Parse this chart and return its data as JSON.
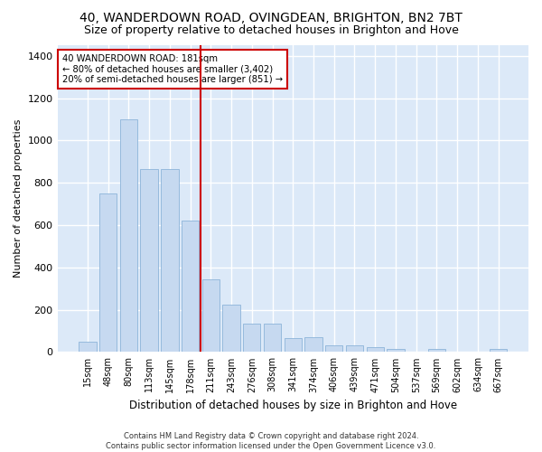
{
  "title": "40, WANDERDOWN ROAD, OVINGDEAN, BRIGHTON, BN2 7BT",
  "subtitle": "Size of property relative to detached houses in Brighton and Hove",
  "xlabel": "Distribution of detached houses by size in Brighton and Hove",
  "ylabel": "Number of detached properties",
  "footer_line1": "Contains HM Land Registry data © Crown copyright and database right 2024.",
  "footer_line2": "Contains public sector information licensed under the Open Government Licence v3.0.",
  "bar_labels": [
    "15sqm",
    "48sqm",
    "80sqm",
    "113sqm",
    "145sqm",
    "178sqm",
    "211sqm",
    "243sqm",
    "276sqm",
    "308sqm",
    "341sqm",
    "374sqm",
    "406sqm",
    "439sqm",
    "471sqm",
    "504sqm",
    "537sqm",
    "569sqm",
    "602sqm",
    "634sqm",
    "667sqm"
  ],
  "bar_values": [
    50,
    750,
    1100,
    865,
    865,
    620,
    345,
    225,
    135,
    135,
    65,
    70,
    30,
    30,
    25,
    15,
    0,
    15,
    0,
    0,
    15
  ],
  "bar_color": "#c6d9f0",
  "bar_edge_color": "#8db4d9",
  "vline_x": 5.5,
  "vline_color": "#cc0000",
  "annotation_line1": "40 WANDERDOWN ROAD: 181sqm",
  "annotation_line2": "← 80% of detached houses are smaller (3,402)",
  "annotation_line3": "20% of semi-detached houses are larger (851) →",
  "annotation_box_color": "#ffffff",
  "annotation_box_edge": "#cc0000",
  "ylim": [
    0,
    1450
  ],
  "yticks": [
    0,
    200,
    400,
    600,
    800,
    1000,
    1200,
    1400
  ],
  "background_color": "#dce9f8",
  "grid_color": "#ffffff",
  "title_fontsize": 10,
  "subtitle_fontsize": 9,
  "fig_bg": "#ffffff"
}
